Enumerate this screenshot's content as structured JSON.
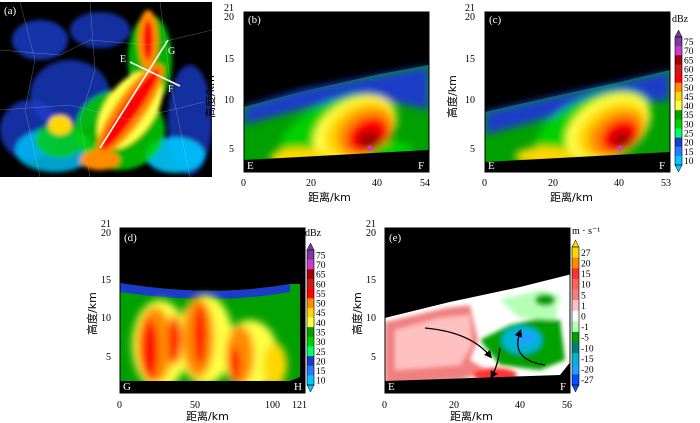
{
  "panels": {
    "a": {
      "tag": "(a)",
      "points": {
        "E": "E",
        "G": "G",
        "F": "F"
      }
    },
    "b": {
      "tag": "(b)",
      "ylabel": "高度/km",
      "xlabel": "距离/km",
      "xticks": [
        "0",
        "20",
        "40",
        "54"
      ],
      "yticks": [
        "5",
        "10",
        "15",
        "20"
      ],
      "start": "E",
      "end": "F"
    },
    "c": {
      "tag": "(c)",
      "ylabel": "高度/km",
      "xlabel": "距离/km",
      "xticks": [
        "0",
        "20",
        "40",
        "53"
      ],
      "yticks": [
        "5",
        "10",
        "15",
        "20"
      ],
      "start": "E",
      "end": "F"
    },
    "d": {
      "tag": "(d)",
      "ylabel": "高度/km",
      "xlabel": "距离/km",
      "xticks": [
        "0",
        "50",
        "100",
        "121"
      ],
      "yticks": [
        "5",
        "10",
        "15",
        "20"
      ],
      "top": "21",
      "start": "G",
      "end": "H"
    },
    "e": {
      "tag": "(e)",
      "ylabel": "高度/km",
      "xlabel": "距离/km",
      "xticks": [
        "0",
        "20",
        "40",
        "56"
      ],
      "yticks": [
        "5",
        "10",
        "15",
        "20"
      ],
      "top": "21",
      "start": "E",
      "end": "F"
    }
  },
  "top_tick_21": "21",
  "colorbar_dbz": {
    "unit": "dBz",
    "ticks": [
      "75",
      "70",
      "65",
      "60",
      "55",
      "50",
      "45",
      "40",
      "35",
      "30",
      "25",
      "20",
      "15",
      "10"
    ],
    "colors": [
      "#7b3aa0",
      "#c83cc8",
      "#a00000",
      "#cc1a1a",
      "#ff0000",
      "#ff8c00",
      "#ffd700",
      "#ffff44",
      "#00a000",
      "#00d000",
      "#00ff66",
      "#1a3cc8",
      "#2a78ff",
      "#00c8ff"
    ]
  },
  "colorbar_vel": {
    "unit": "m · s⁻¹",
    "ticks": [
      "27",
      "20",
      "15",
      "10",
      "5",
      "1",
      "0",
      "-1",
      "-5",
      "-10",
      "-15",
      "-20",
      "-27"
    ],
    "colors": [
      "#ffd700",
      "#ff8c00",
      "#ff3030",
      "#ff6060",
      "#f08080",
      "#ffc0c0",
      "#ffffff",
      "#b4ffb4",
      "#00a000",
      "#007d7d",
      "#00b4d2",
      "#1ea0ff",
      "#0050ff"
    ]
  }
}
